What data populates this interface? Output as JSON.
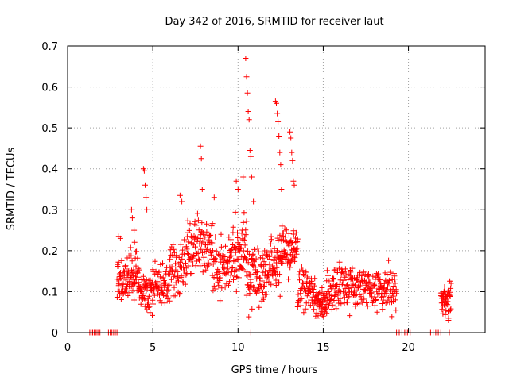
{
  "chart_data": {
    "type": "scatter",
    "title": "Day 342 of 2016, SRMTID for receiver laut",
    "xlabel": "GPS time / hours",
    "ylabel": "SRMTID / TECUs",
    "xlim": [
      0,
      24.5
    ],
    "ylim": [
      0,
      0.7
    ],
    "xticks": [
      0,
      5,
      10,
      15,
      20
    ],
    "xtick_labels": [
      "0",
      "5",
      "10",
      "15",
      "20"
    ],
    "yticks": [
      0,
      0.1,
      0.2,
      0.3,
      0.4,
      0.5,
      0.6,
      0.7
    ],
    "ytick_labels": [
      "0",
      "0.1",
      "0.2",
      "0.3",
      "0.4",
      "0.5",
      "0.6",
      "0.7"
    ],
    "grid": true,
    "marker": "plus",
    "color": "#ff0000",
    "series": [
      {
        "name": "SRMTID",
        "segments": [
          {
            "x_start": 1.3,
            "x_end": 1.9,
            "level": 0.0,
            "spread": 0.0,
            "count": 8
          },
          {
            "x_start": 2.4,
            "x_end": 2.9,
            "level": 0.0,
            "spread": 0.0,
            "count": 6
          },
          {
            "x_start": 2.9,
            "x_end": 3.5,
            "level": 0.12,
            "spread": 0.05,
            "count": 45
          },
          {
            "x_start": 3.5,
            "x_end": 4.2,
            "level": 0.14,
            "spread": 0.05,
            "count": 50
          },
          {
            "x_start": 4.2,
            "x_end": 5.0,
            "level": 0.1,
            "spread": 0.04,
            "count": 55
          },
          {
            "x_start": 5.0,
            "x_end": 6.0,
            "level": 0.12,
            "spread": 0.04,
            "count": 60
          },
          {
            "x_start": 6.0,
            "x_end": 7.0,
            "level": 0.16,
            "spread": 0.05,
            "count": 60
          },
          {
            "x_start": 7.0,
            "x_end": 8.5,
            "level": 0.21,
            "spread": 0.05,
            "count": 90
          },
          {
            "x_start": 8.5,
            "x_end": 9.5,
            "level": 0.16,
            "spread": 0.05,
            "count": 60
          },
          {
            "x_start": 9.5,
            "x_end": 10.5,
            "level": 0.2,
            "spread": 0.06,
            "count": 70
          },
          {
            "x_start": 10.5,
            "x_end": 11.5,
            "level": 0.14,
            "spread": 0.06,
            "count": 70
          },
          {
            "x_start": 11.5,
            "x_end": 12.5,
            "level": 0.16,
            "spread": 0.05,
            "count": 70
          },
          {
            "x_start": 12.5,
            "x_end": 13.5,
            "level": 0.2,
            "spread": 0.05,
            "count": 70
          },
          {
            "x_start": 13.5,
            "x_end": 14.5,
            "level": 0.1,
            "spread": 0.04,
            "count": 60
          },
          {
            "x_start": 14.5,
            "x_end": 15.2,
            "level": 0.07,
            "spread": 0.03,
            "count": 50
          },
          {
            "x_start": 15.2,
            "x_end": 17.0,
            "level": 0.11,
            "spread": 0.04,
            "count": 110
          },
          {
            "x_start": 17.0,
            "x_end": 19.3,
            "level": 0.11,
            "spread": 0.04,
            "count": 130
          },
          {
            "x_start": 19.3,
            "x_end": 20.1,
            "level": 0.0,
            "spread": 0.0,
            "count": 6
          },
          {
            "x_start": 21.3,
            "x_end": 21.9,
            "level": 0.0,
            "spread": 0.0,
            "count": 5
          },
          {
            "x_start": 21.9,
            "x_end": 22.5,
            "level": 0.08,
            "spread": 0.03,
            "count": 50
          }
        ],
        "peaks": [
          [
            3.0,
            0.235
          ],
          [
            3.1,
            0.23
          ],
          [
            3.75,
            0.3
          ],
          [
            3.8,
            0.28
          ],
          [
            3.9,
            0.25
          ],
          [
            4.45,
            0.4
          ],
          [
            4.5,
            0.395
          ],
          [
            4.55,
            0.36
          ],
          [
            4.6,
            0.33
          ],
          [
            4.65,
            0.3
          ],
          [
            6.6,
            0.335
          ],
          [
            6.7,
            0.32
          ],
          [
            7.8,
            0.455
          ],
          [
            7.85,
            0.425
          ],
          [
            7.9,
            0.35
          ],
          [
            8.6,
            0.33
          ],
          [
            9.9,
            0.37
          ],
          [
            10.0,
            0.35
          ],
          [
            10.3,
            0.38
          ],
          [
            10.45,
            0.67
          ],
          [
            10.5,
            0.625
          ],
          [
            10.55,
            0.585
          ],
          [
            10.6,
            0.54
          ],
          [
            10.65,
            0.52
          ],
          [
            10.7,
            0.445
          ],
          [
            10.75,
            0.43
          ],
          [
            10.8,
            0.38
          ],
          [
            10.9,
            0.32
          ],
          [
            12.2,
            0.565
          ],
          [
            12.25,
            0.56
          ],
          [
            12.3,
            0.535
          ],
          [
            12.35,
            0.515
          ],
          [
            12.4,
            0.48
          ],
          [
            12.45,
            0.44
          ],
          [
            12.5,
            0.41
          ],
          [
            12.55,
            0.35
          ],
          [
            13.05,
            0.49
          ],
          [
            13.1,
            0.475
          ],
          [
            13.15,
            0.44
          ],
          [
            13.2,
            0.42
          ],
          [
            13.25,
            0.37
          ],
          [
            13.3,
            0.36
          ],
          [
            10.75,
            0.0
          ],
          [
            22.4,
            0.0
          ],
          [
            22.35,
            0.03
          ]
        ]
      }
    ]
  }
}
